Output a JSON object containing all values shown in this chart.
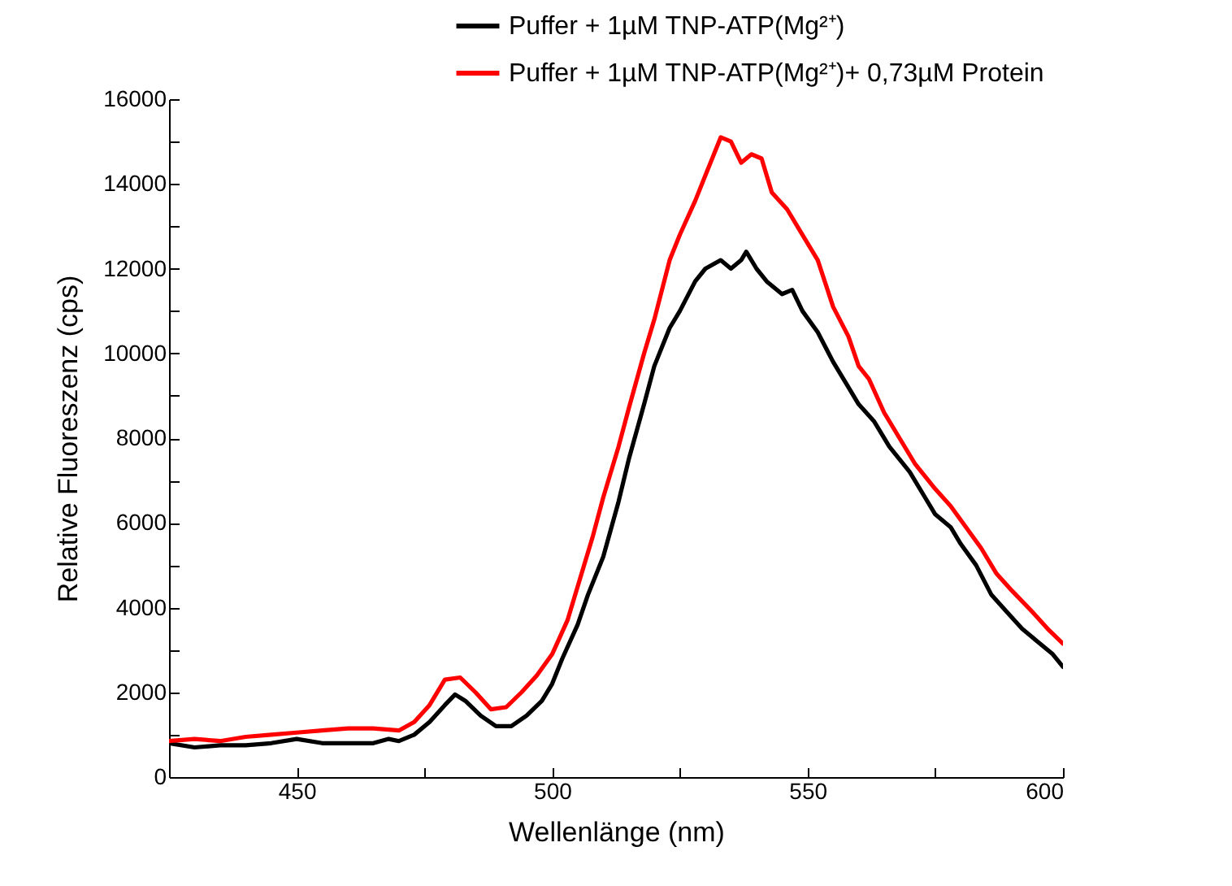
{
  "chart_data": {
    "type": "line",
    "xlabel": "Wellenlänge (nm)",
    "ylabel": "Relative Fluoreszenz (cps)",
    "xlim": [
      425,
      600
    ],
    "xticks": [
      {
        "value": 425,
        "label": null
      },
      450,
      {
        "value": 475,
        "label": null
      },
      500,
      {
        "value": 525,
        "label": null
      },
      550,
      {
        "value": 575,
        "label": null
      },
      600
    ],
    "ylim": [
      0,
      16000
    ],
    "yticks": [
      0,
      {
        "value": 1000,
        "label": null
      },
      2000,
      {
        "value": 3000,
        "label": null
      },
      4000,
      {
        "value": 5000,
        "label": null
      },
      6000,
      {
        "value": 7000,
        "label": null
      },
      8000,
      {
        "value": 9000,
        "label": null
      },
      10000,
      {
        "value": 11000,
        "label": null
      },
      12000,
      {
        "value": 13000,
        "label": null
      },
      14000,
      {
        "value": 15000,
        "label": null
      },
      16000
    ],
    "grid": false,
    "legend": "top right",
    "line_style": "solid",
    "marker": "none",
    "series": [
      {
        "name": "Puffer + 1µM TNP-ATP(Mg²⁺)",
        "color": "#000000",
        "x": [
          425,
          430,
          435,
          440,
          445,
          450,
          455,
          460,
          465,
          468,
          470,
          473,
          476,
          479,
          481,
          483,
          486,
          489,
          492,
          495,
          498,
          500,
          502,
          505,
          507,
          510,
          513,
          515,
          518,
          520,
          523,
          525,
          528,
          530,
          533,
          535,
          537,
          538,
          540,
          542,
          545,
          547,
          549,
          552,
          555,
          558,
          560,
          563,
          566,
          570,
          573,
          575,
          578,
          580,
          583,
          586,
          589,
          592,
          595,
          598,
          600
        ],
        "values": [
          800,
          700,
          750,
          750,
          800,
          900,
          800,
          800,
          800,
          900,
          850,
          1000,
          1300,
          1700,
          1950,
          1800,
          1450,
          1200,
          1200,
          1450,
          1800,
          2200,
          2800,
          3600,
          4300,
          5200,
          6500,
          7500,
          8800,
          9700,
          10600,
          11000,
          11700,
          12000,
          12200,
          12000,
          12200,
          12400,
          12000,
          11700,
          11400,
          11500,
          11000,
          10500,
          9800,
          9200,
          8800,
          8400,
          7800,
          7200,
          6600,
          6200,
          5900,
          5500,
          5000,
          4300,
          3900,
          3500,
          3200,
          2900,
          2600
        ]
      },
      {
        "name": "Puffer + 1µM TNP-ATP(Mg²⁺)+ 0,73µM Protein",
        "color": "#ff0000",
        "x": [
          425,
          430,
          435,
          440,
          445,
          450,
          455,
          460,
          465,
          470,
          473,
          476,
          479,
          482,
          485,
          488,
          491,
          494,
          497,
          500,
          503,
          505,
          508,
          510,
          513,
          515,
          518,
          520,
          523,
          525,
          528,
          530,
          533,
          535,
          537,
          539,
          541,
          543,
          546,
          549,
          552,
          555,
          558,
          560,
          562,
          565,
          568,
          571,
          575,
          578,
          581,
          584,
          587,
          590,
          594,
          597,
          600
        ],
        "values": [
          850,
          900,
          850,
          950,
          1000,
          1050,
          1100,
          1150,
          1150,
          1100,
          1300,
          1700,
          2300,
          2350,
          2000,
          1600,
          1650,
          2000,
          2400,
          2900,
          3700,
          4500,
          5700,
          6600,
          7800,
          8700,
          10000,
          10800,
          12200,
          12800,
          13600,
          14200,
          15100,
          15000,
          14500,
          14700,
          14600,
          13800,
          13400,
          12800,
          12200,
          11100,
          10400,
          9700,
          9400,
          8600,
          8000,
          7400,
          6800,
          6400,
          5900,
          5400,
          4800,
          4400,
          3900,
          3500,
          3150
        ]
      }
    ]
  }
}
